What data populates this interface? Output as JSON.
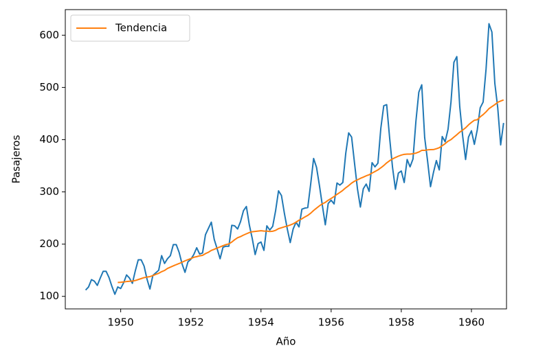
{
  "chart_data": {
    "type": "line",
    "x": [
      "1949-01",
      "1949-02",
      "1949-03",
      "1949-04",
      "1949-05",
      "1949-06",
      "1949-07",
      "1949-08",
      "1949-09",
      "1949-10",
      "1949-11",
      "1949-12",
      "1950-01",
      "1950-02",
      "1950-03",
      "1950-04",
      "1950-05",
      "1950-06",
      "1950-07",
      "1950-08",
      "1950-09",
      "1950-10",
      "1950-11",
      "1950-12",
      "1951-01",
      "1951-02",
      "1951-03",
      "1951-04",
      "1951-05",
      "1951-06",
      "1951-07",
      "1951-08",
      "1951-09",
      "1951-10",
      "1951-11",
      "1951-12",
      "1952-01",
      "1952-02",
      "1952-03",
      "1952-04",
      "1952-05",
      "1952-06",
      "1952-07",
      "1952-08",
      "1952-09",
      "1952-10",
      "1952-11",
      "1952-12",
      "1953-01",
      "1953-02",
      "1953-03",
      "1953-04",
      "1953-05",
      "1953-06",
      "1953-07",
      "1953-08",
      "1953-09",
      "1953-10",
      "1953-11",
      "1953-12",
      "1954-01",
      "1954-02",
      "1954-03",
      "1954-04",
      "1954-05",
      "1954-06",
      "1954-07",
      "1954-08",
      "1954-09",
      "1954-10",
      "1954-11",
      "1954-12",
      "1955-01",
      "1955-02",
      "1955-03",
      "1955-04",
      "1955-05",
      "1955-06",
      "1955-07",
      "1955-08",
      "1955-09",
      "1955-10",
      "1955-11",
      "1955-12",
      "1956-01",
      "1956-02",
      "1956-03",
      "1956-04",
      "1956-05",
      "1956-06",
      "1956-07",
      "1956-08",
      "1956-09",
      "1956-10",
      "1956-11",
      "1956-12",
      "1957-01",
      "1957-02",
      "1957-03",
      "1957-04",
      "1957-05",
      "1957-06",
      "1957-07",
      "1957-08",
      "1957-09",
      "1957-10",
      "1957-11",
      "1957-12",
      "1958-01",
      "1958-02",
      "1958-03",
      "1958-04",
      "1958-05",
      "1958-06",
      "1958-07",
      "1958-08",
      "1958-09",
      "1958-10",
      "1958-11",
      "1958-12",
      "1959-01",
      "1959-02",
      "1959-03",
      "1959-04",
      "1959-05",
      "1959-06",
      "1959-07",
      "1959-08",
      "1959-09",
      "1959-10",
      "1959-11",
      "1959-12",
      "1960-01",
      "1960-02",
      "1960-03",
      "1960-04",
      "1960-05",
      "1960-06",
      "1960-07",
      "1960-08",
      "1960-09",
      "1960-10",
      "1960-11",
      "1960-12"
    ],
    "series": [
      {
        "color": "#1f77b4",
        "values": [
          112,
          118,
          132,
          129,
          121,
          135,
          148,
          148,
          136,
          119,
          104,
          118,
          115,
          126,
          141,
          135,
          125,
          149,
          170,
          170,
          158,
          133,
          114,
          140,
          145,
          150,
          178,
          163,
          172,
          178,
          199,
          199,
          184,
          162,
          146,
          166,
          171,
          180,
          193,
          181,
          183,
          218,
          230,
          242,
          209,
          191,
          172,
          194,
          196,
          196,
          236,
          235,
          229,
          243,
          264,
          272,
          237,
          211,
          180,
          201,
          204,
          188,
          235,
          227,
          234,
          264,
          302,
          293,
          259,
          229,
          203,
          229,
          242,
          233,
          267,
          269,
          270,
          315,
          364,
          347,
          312,
          274,
          237,
          278,
          284,
          277,
          317,
          313,
          318,
          374,
          413,
          405,
          355,
          306,
          271,
          306,
          315,
          301,
          356,
          348,
          355,
          422,
          465,
          467,
          404,
          347,
          305,
          336,
          340,
          318,
          362,
          348,
          363,
          435,
          491,
          505,
          404,
          359,
          310,
          337,
          360,
          342,
          406,
          396,
          420,
          472,
          548,
          559,
          463,
          407,
          362,
          405,
          417,
          391,
          419,
          461,
          472,
          535,
          622,
          606,
          508,
          461,
          390,
          432
        ]
      },
      {
        "name": "Tendencia",
        "color": "#ff7f0e",
        "values": [
          null,
          null,
          null,
          null,
          null,
          null,
          null,
          null,
          null,
          null,
          null,
          126.67,
          126.92,
          127.58,
          128.33,
          128.83,
          129.17,
          130.33,
          132.17,
          134.0,
          135.83,
          137.0,
          137.83,
          139.67,
          142.17,
          144.17,
          147.25,
          149.58,
          153.5,
          155.92,
          158.33,
          160.75,
          162.92,
          165.33,
          168.0,
          170.17,
          172.33,
          174.83,
          176.08,
          177.58,
          178.5,
          181.83,
          184.42,
          188.0,
          190.08,
          192.5,
          194.67,
          197.0,
          199.08,
          200.42,
          204.0,
          208.5,
          212.33,
          214.42,
          217.25,
          219.75,
          222.08,
          223.75,
          224.42,
          225.0,
          225.67,
          225.0,
          224.92,
          224.25,
          224.67,
          226.42,
          229.58,
          231.33,
          233.17,
          234.67,
          236.58,
          238.92,
          242.08,
          245.83,
          248.5,
          252.0,
          255.0,
          259.25,
          264.42,
          268.92,
          273.33,
          277.08,
          279.92,
          284.0,
          287.5,
          291.17,
          295.33,
          299.0,
          303.0,
          307.92,
          312.0,
          316.83,
          320.42,
          323.08,
          325.92,
          328.25,
          330.83,
          332.83,
          336.08,
          339.0,
          342.08,
          346.08,
          350.42,
          355.58,
          359.67,
          363.08,
          365.92,
          368.42,
          370.5,
          371.92,
          372.42,
          372.42,
          373.08,
          374.17,
          376.33,
          379.5,
          379.5,
          380.5,
          380.92,
          381.0,
          382.67,
          384.67,
          388.33,
          392.33,
          397.08,
          400.17,
          404.92,
          409.42,
          414.33,
          418.33,
          422.67,
          428.33,
          433.08,
          437.17,
          438.25,
          443.67,
          448.0,
          453.25,
          459.42,
          463.33,
          467.08,
          471.58,
          473.92,
          476.17
        ]
      }
    ],
    "x_label": "Año",
    "y_label": "Pasajeros",
    "xlim": [
      1948.42,
      1961.0
    ],
    "xticks": [
      1950,
      1952,
      1954,
      1956,
      1958,
      1960
    ],
    "ylim": [
      76,
      649
    ],
    "yticks": [
      100,
      200,
      300,
      400,
      500,
      600
    ],
    "grid": false,
    "legend": "upper left"
  }
}
